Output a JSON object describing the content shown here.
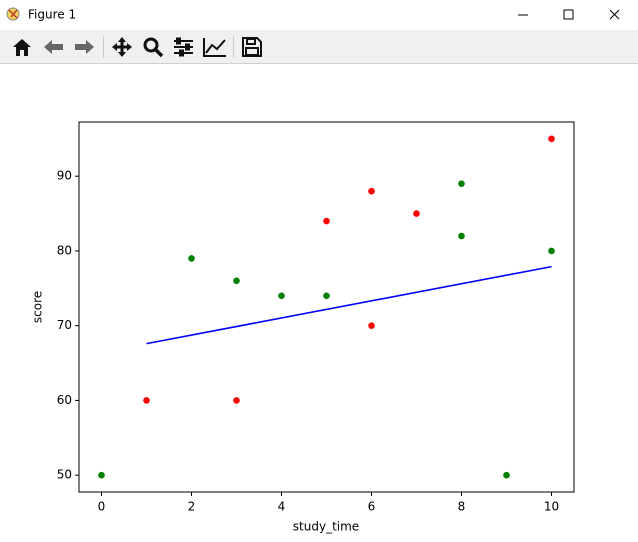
{
  "window": {
    "title": "Figure 1"
  },
  "chart_data": {
    "type": "scatter",
    "xlabel": "study_time",
    "ylabel": "score",
    "xlim": [
      -0.5,
      10.5
    ],
    "ylim": [
      47.75,
      97.25
    ],
    "xticks": [
      0,
      2,
      4,
      6,
      8,
      10
    ],
    "yticks": [
      50,
      60,
      70,
      80,
      90
    ],
    "series": [
      {
        "color": "red",
        "x": [
          1,
          3,
          5,
          6,
          6,
          7,
          10
        ],
        "values": [
          60,
          60,
          84,
          88,
          70,
          85,
          95
        ]
      },
      {
        "color": "green",
        "x": [
          0,
          2,
          3,
          4,
          5,
          8,
          8,
          9,
          10
        ],
        "values": [
          50,
          79,
          76,
          74,
          74,
          89,
          82,
          50,
          80
        ]
      },
      {
        "type": "line",
        "color": "blue",
        "x": [
          1,
          10
        ],
        "values": [
          67.6,
          77.9
        ]
      }
    ]
  }
}
